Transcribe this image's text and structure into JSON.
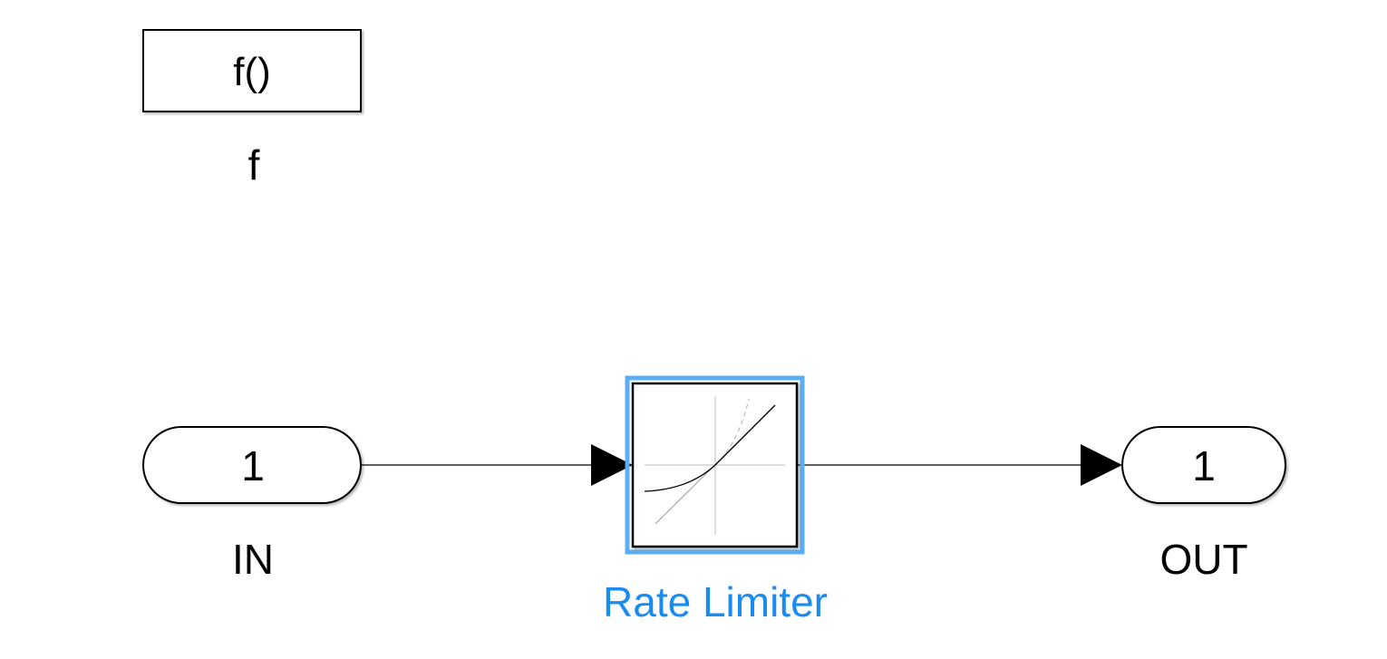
{
  "diagram": {
    "function_block": {
      "glyph": "f()",
      "label": "f"
    },
    "inport": {
      "number": "1",
      "label": "IN"
    },
    "rate_limiter": {
      "label": "Rate Limiter",
      "icon": "rate-limiter-curve-icon",
      "selected": true
    },
    "outport": {
      "number": "1",
      "label": "OUT"
    },
    "connections": [
      {
        "from": "IN",
        "to": "Rate Limiter"
      },
      {
        "from": "Rate Limiter",
        "to": "OUT"
      }
    ],
    "colors": {
      "block_stroke": "#000000",
      "selection_highlight": "#5aaef5",
      "selected_label": "#1a8cf0",
      "icon_guide": "#c8c8c8",
      "icon_dashed": "#b0b0b0"
    }
  }
}
